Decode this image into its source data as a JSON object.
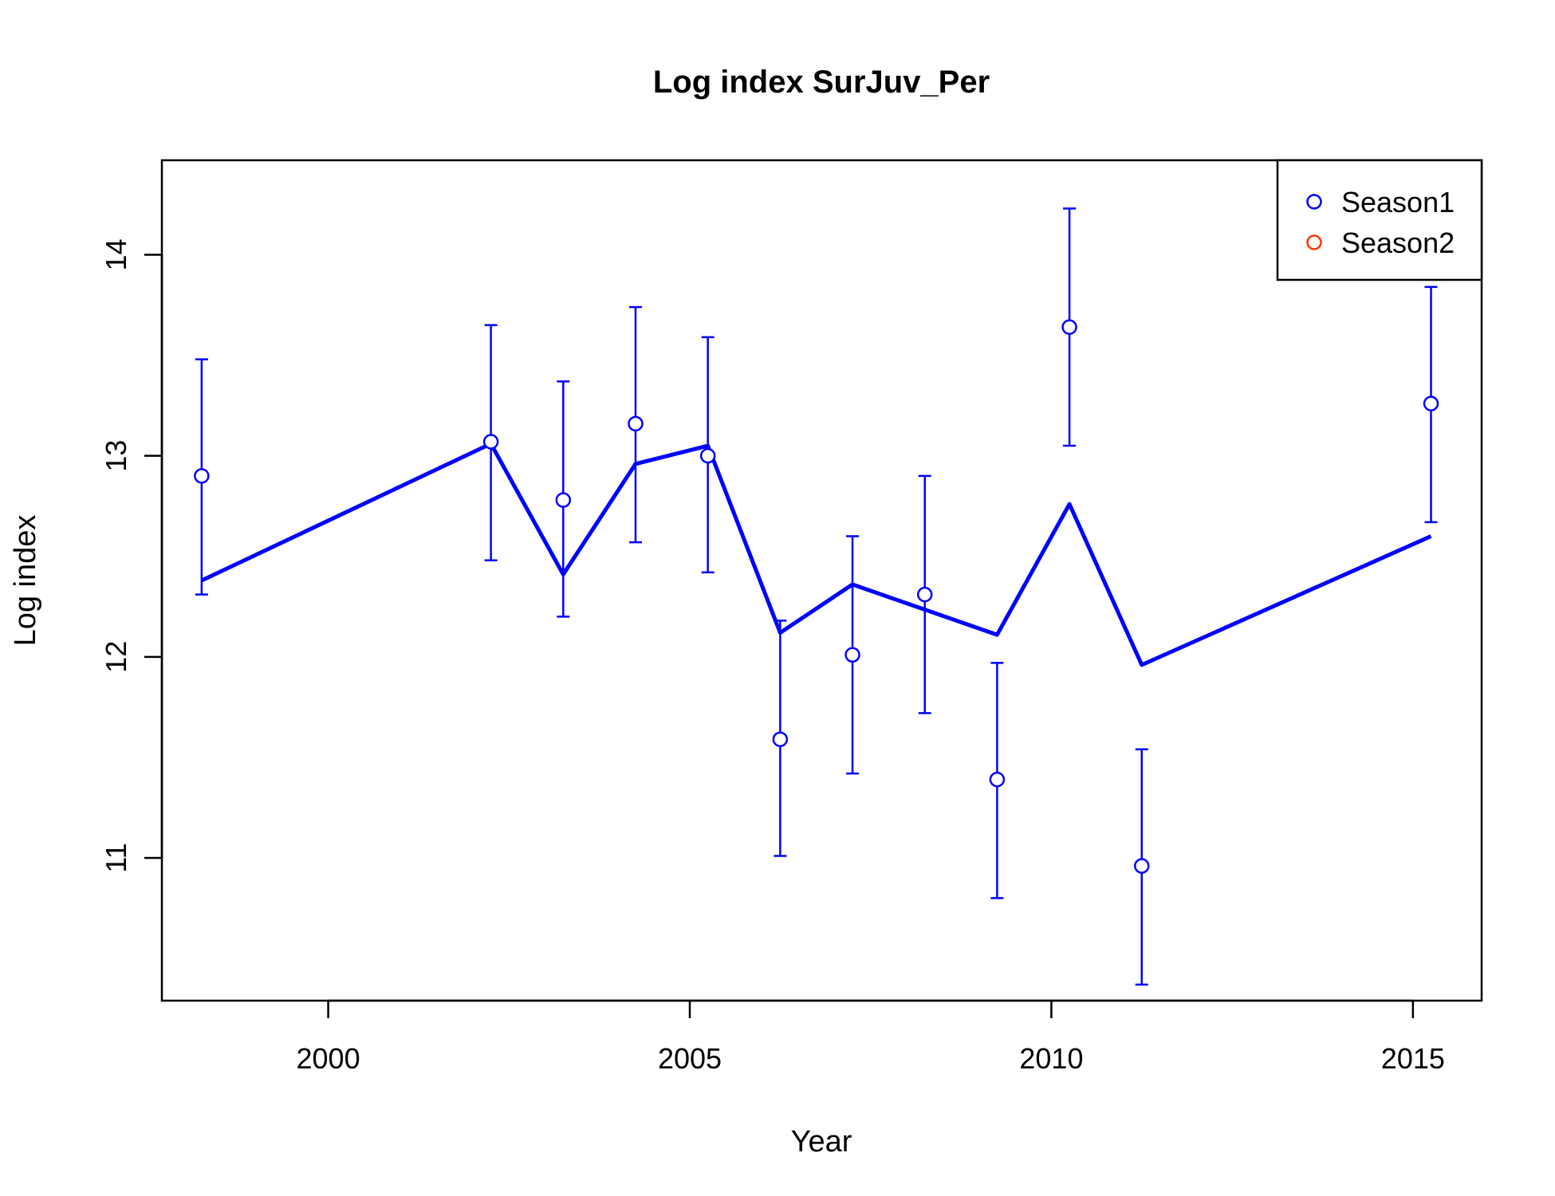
{
  "chart_data": {
    "type": "line",
    "title": "Log index SurJuv_Per",
    "xlabel": "Year",
    "ylabel": "Log index",
    "xlim": [
      1997.7,
      2015.95
    ],
    "ylim": [
      10.29,
      14.47
    ],
    "xticks": [
      2000,
      2005,
      2010,
      2015
    ],
    "yticks": [
      11,
      12,
      13,
      14
    ],
    "grid": false,
    "legend": {
      "placement": "top-right",
      "entries": [
        {
          "name": "Season1",
          "color": "#0000ff"
        },
        {
          "name": "Season2",
          "color": "#ff3300"
        }
      ]
    },
    "series": [
      {
        "name": "Season1",
        "color": "#0000ff",
        "observed": [
          {
            "x": 1998.25,
            "y": 12.9,
            "lower": 12.31,
            "upper": 13.48
          },
          {
            "x": 2002.25,
            "y": 13.07,
            "lower": 12.48,
            "upper": 13.65
          },
          {
            "x": 2003.25,
            "y": 12.78,
            "lower": 12.2,
            "upper": 13.37
          },
          {
            "x": 2004.25,
            "y": 13.16,
            "lower": 12.57,
            "upper": 13.74
          },
          {
            "x": 2005.25,
            "y": 13.0,
            "lower": 12.42,
            "upper": 13.59
          },
          {
            "x": 2006.25,
            "y": 11.59,
            "lower": 11.01,
            "upper": 12.18
          },
          {
            "x": 2007.25,
            "y": 12.01,
            "lower": 11.42,
            "upper": 12.6
          },
          {
            "x": 2008.25,
            "y": 12.31,
            "lower": 11.72,
            "upper": 12.9
          },
          {
            "x": 2009.25,
            "y": 11.39,
            "lower": 10.8,
            "upper": 11.97
          },
          {
            "x": 2010.25,
            "y": 13.64,
            "lower": 13.05,
            "upper": 14.23
          },
          {
            "x": 2011.25,
            "y": 10.96,
            "lower": 10.37,
            "upper": 11.54
          },
          {
            "x": 2015.25,
            "y": 13.26,
            "lower": 12.67,
            "upper": 13.84
          }
        ],
        "fitted": [
          {
            "x": 1998.25,
            "y": 12.38
          },
          {
            "x": 2002.25,
            "y": 13.06
          },
          {
            "x": 2003.25,
            "y": 12.41
          },
          {
            "x": 2004.25,
            "y": 12.96
          },
          {
            "x": 2005.25,
            "y": 13.05
          },
          {
            "x": 2006.25,
            "y": 12.12
          },
          {
            "x": 2007.25,
            "y": 12.36
          },
          {
            "x": 2009.25,
            "y": 12.11
          },
          {
            "x": 2010.25,
            "y": 12.76
          },
          {
            "x": 2011.25,
            "y": 11.96
          },
          {
            "x": 2015.25,
            "y": 12.6
          }
        ]
      }
    ]
  }
}
